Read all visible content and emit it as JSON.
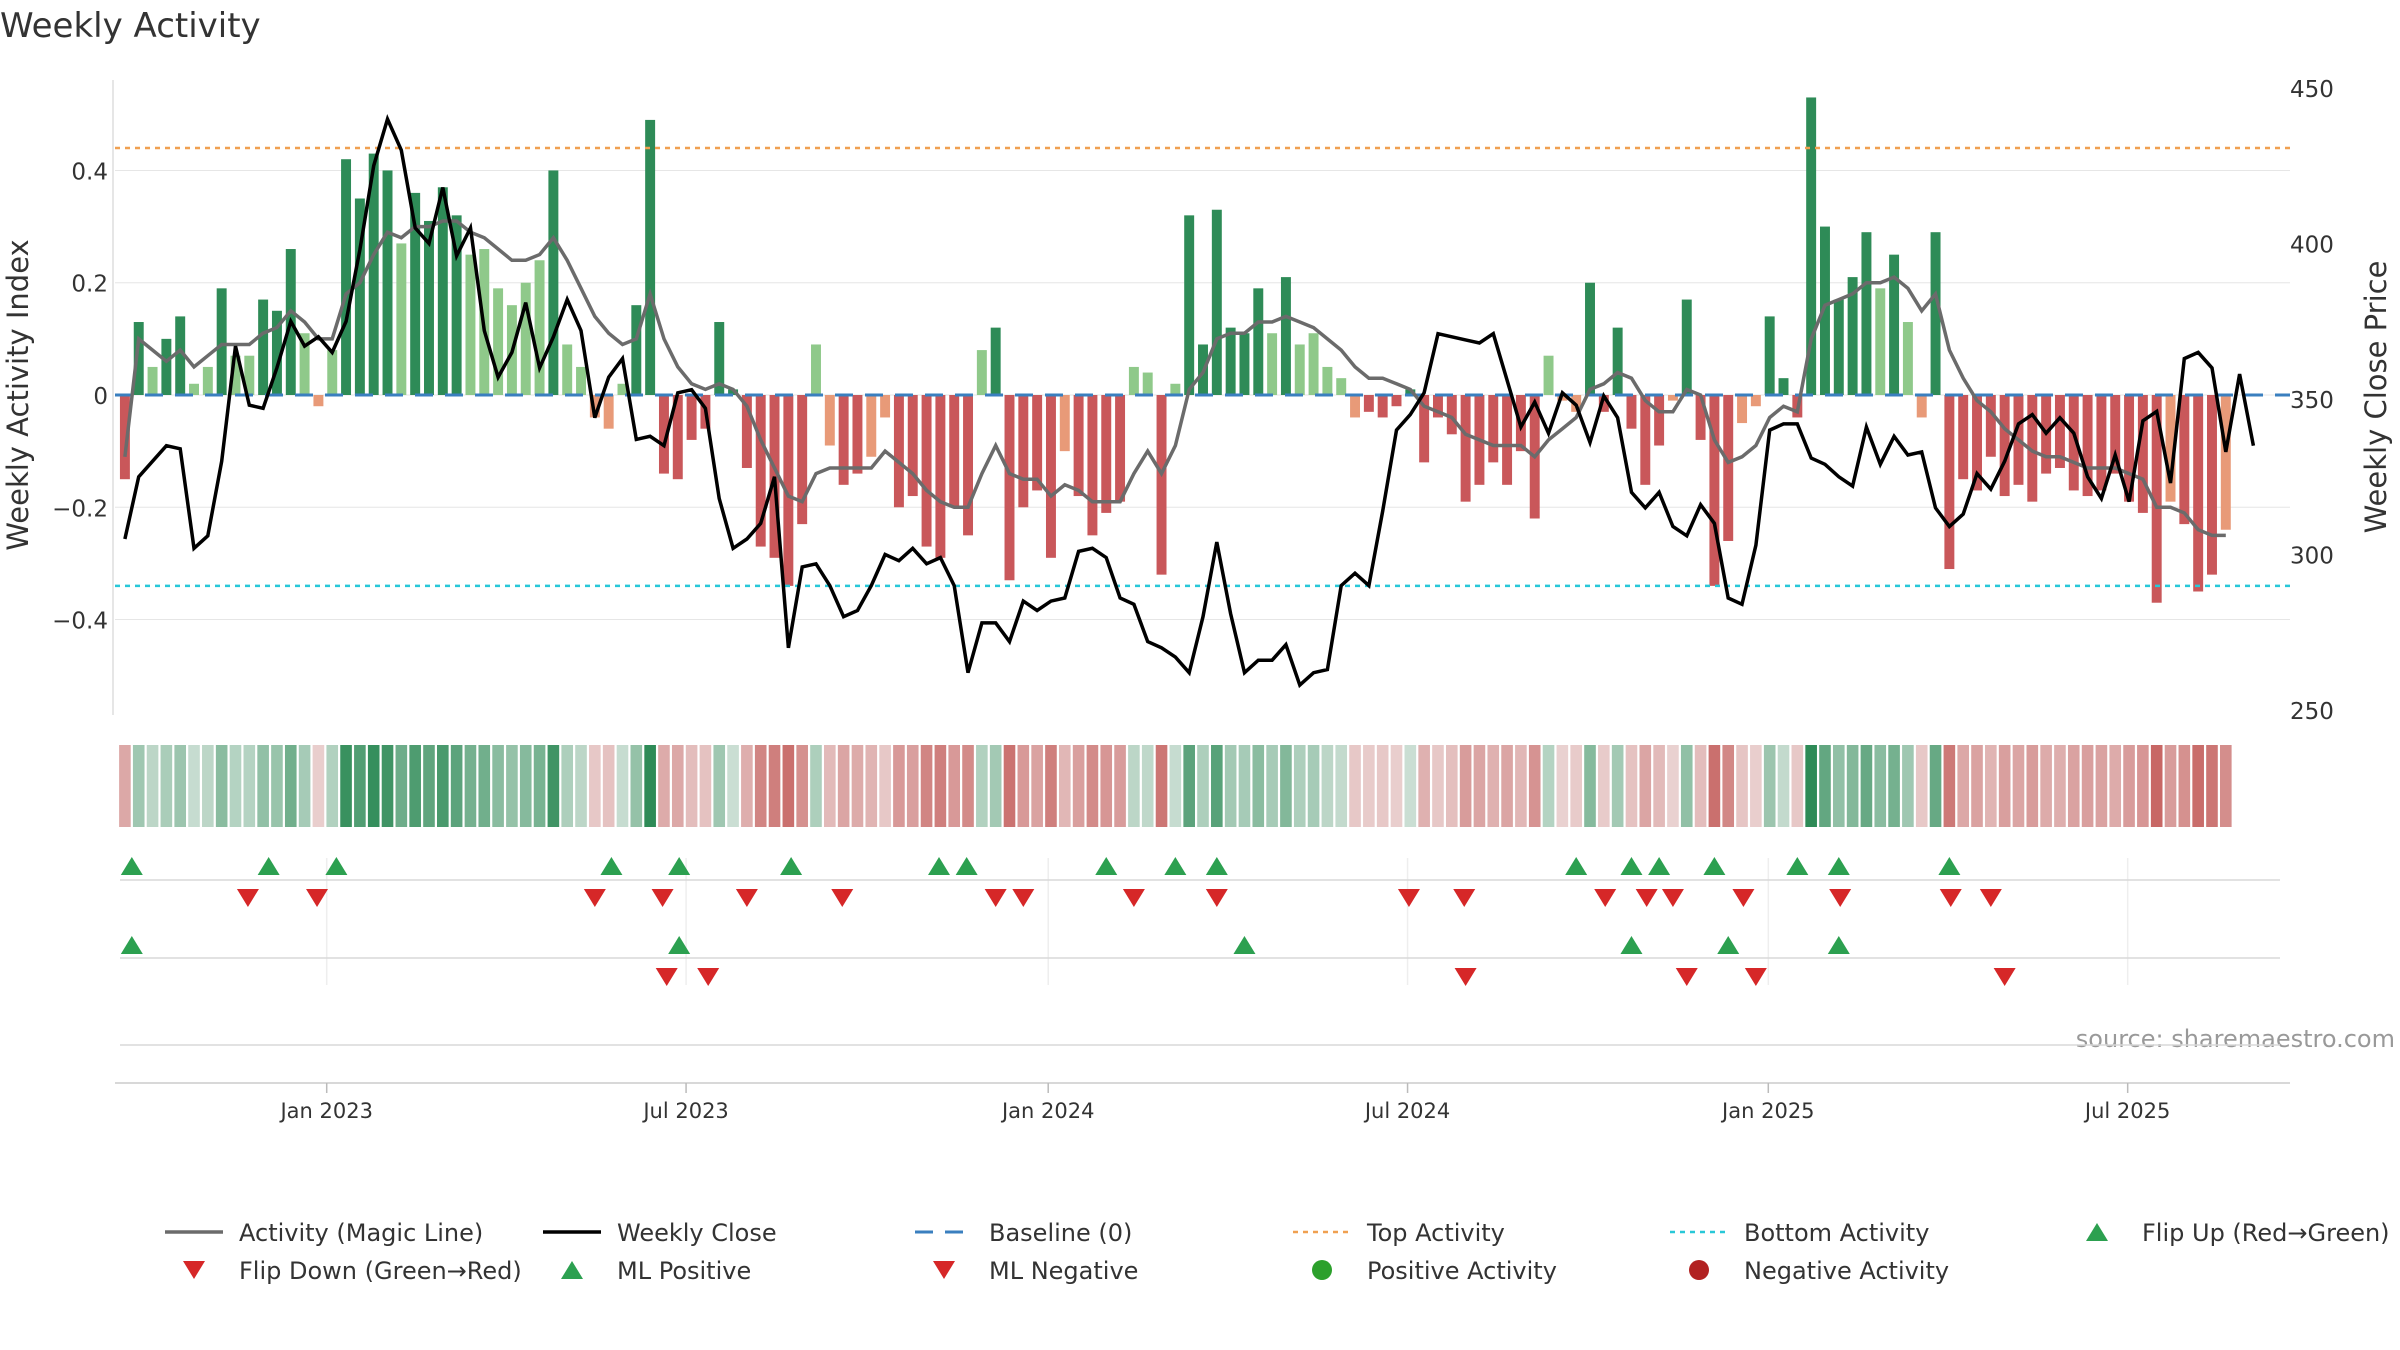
{
  "chart_data": {
    "type": "bar",
    "title": "Weekly Activity",
    "ylabel": "Weekly Activity Index",
    "y2label": "Weekly Close Price",
    "ylim": [
      -0.57,
      0.57
    ],
    "y2lim": [
      250,
      450
    ],
    "yticks": [
      {
        "value": 0.4,
        "label": "0.4"
      },
      {
        "value": 0.2,
        "label": "0.2"
      },
      {
        "value": 0,
        "label": "0"
      },
      {
        "value": -0.2,
        "label": "−0.2"
      },
      {
        "value": -0.4,
        "label": "−0.4"
      }
    ],
    "y2ticks": [
      450,
      400,
      350,
      300,
      250
    ],
    "xlim": [
      0,
      157
    ],
    "xticks": [
      {
        "label": "Jan 2023",
        "week": 15.1
      },
      {
        "label": "Jul 2023",
        "week": 41.1
      },
      {
        "label": "Jan 2024",
        "week": 67.3
      },
      {
        "label": "Jul 2024",
        "week": 93.3
      },
      {
        "label": "Jan 2025",
        "week": 119.4
      },
      {
        "label": "Jul 2025",
        "week": 145.4
      }
    ],
    "top_activity": 0.44,
    "bottom_activity": -0.34,
    "activity": [
      -0.15,
      0.13,
      0.05,
      0.1,
      0.14,
      0.02,
      0.05,
      0.19,
      0.07,
      0.07,
      0.17,
      0.15,
      0.26,
      0.11,
      -0.02,
      0.08,
      0.42,
      0.35,
      0.43,
      0.4,
      0.27,
      0.36,
      0.31,
      0.37,
      0.32,
      0.25,
      0.26,
      0.19,
      0.16,
      0.2,
      0.24,
      0.4,
      0.09,
      0.05,
      -0.04,
      -0.06,
      0.02,
      0.16,
      0.49,
      -0.14,
      -0.15,
      -0.08,
      -0.06,
      0.13,
      0.01,
      -0.13,
      -0.27,
      -0.29,
      -0.34,
      -0.23,
      0.09,
      -0.09,
      -0.16,
      -0.14,
      -0.11,
      -0.04,
      -0.2,
      -0.18,
      -0.27,
      -0.29,
      -0.2,
      -0.25,
      0.08,
      0.12,
      -0.33,
      -0.2,
      -0.17,
      -0.29,
      -0.1,
      -0.18,
      -0.25,
      -0.21,
      -0.19,
      0.05,
      0.04,
      -0.32,
      0.02,
      0.32,
      0.09,
      0.33,
      0.12,
      0.11,
      0.19,
      0.11,
      0.21,
      0.09,
      0.11,
      0.05,
      0.03,
      -0.04,
      -0.03,
      -0.04,
      -0.02,
      0.01,
      -0.12,
      -0.04,
      -0.07,
      -0.19,
      -0.16,
      -0.12,
      -0.16,
      -0.1,
      -0.22,
      0.07,
      -0.01,
      -0.03,
      0.2,
      -0.03,
      0.12,
      -0.06,
      -0.16,
      -0.09,
      -0.01,
      0.17,
      -0.08,
      -0.34,
      -0.26,
      -0.05,
      -0.02,
      0.14,
      0.03,
      -0.04,
      0.53,
      0.3,
      0.17,
      0.21,
      0.29,
      0.19,
      0.25,
      0.13,
      -0.04,
      0.29,
      -0.31,
      -0.15,
      -0.17,
      -0.11,
      -0.18,
      -0.16,
      -0.19,
      -0.14,
      -0.13,
      -0.17,
      -0.18,
      -0.17,
      -0.14,
      -0.19,
      -0.21,
      -0.37,
      -0.19,
      -0.23,
      -0.35,
      -0.32,
      -0.24
    ],
    "magic_line": [
      -0.11,
      0.1,
      0.08,
      0.06,
      0.08,
      0.05,
      0.07,
      0.09,
      0.09,
      0.09,
      0.11,
      0.12,
      0.15,
      0.13,
      0.1,
      0.1,
      0.18,
      0.2,
      0.25,
      0.29,
      0.28,
      0.3,
      0.3,
      0.31,
      0.31,
      0.29,
      0.28,
      0.26,
      0.24,
      0.24,
      0.25,
      0.28,
      0.24,
      0.19,
      0.14,
      0.11,
      0.09,
      0.1,
      0.18,
      0.1,
      0.05,
      0.02,
      0.01,
      0.02,
      0.01,
      -0.02,
      -0.08,
      -0.13,
      -0.18,
      -0.19,
      -0.14,
      -0.13,
      -0.13,
      -0.13,
      -0.13,
      -0.1,
      -0.12,
      -0.14,
      -0.17,
      -0.19,
      -0.2,
      -0.2,
      -0.14,
      -0.09,
      -0.14,
      -0.15,
      -0.15,
      -0.18,
      -0.16,
      -0.17,
      -0.19,
      -0.19,
      -0.19,
      -0.14,
      -0.1,
      -0.14,
      -0.09,
      0.01,
      0.04,
      0.1,
      0.11,
      0.11,
      0.13,
      0.13,
      0.14,
      0.13,
      0.12,
      0.1,
      0.08,
      0.05,
      0.03,
      0.03,
      0.02,
      0.01,
      -0.02,
      -0.03,
      -0.04,
      -0.07,
      -0.08,
      -0.09,
      -0.09,
      -0.09,
      -0.11,
      -0.08,
      -0.06,
      -0.04,
      0.01,
      0.02,
      0.04,
      0.03,
      -0.01,
      -0.03,
      -0.03,
      0.01,
      0,
      -0.08,
      -0.12,
      -0.11,
      -0.09,
      -0.04,
      -0.02,
      -0.03,
      0.1,
      0.16,
      0.17,
      0.18,
      0.2,
      0.2,
      0.21,
      0.19,
      0.15,
      0.18,
      0.08,
      0.03,
      -0.01,
      -0.03,
      -0.06,
      -0.08,
      -0.1,
      -0.11,
      -0.11,
      -0.12,
      -0.13,
      -0.13,
      -0.13,
      -0.14,
      -0.15,
      -0.2,
      -0.2,
      -0.21,
      -0.24,
      -0.25,
      -0.25
    ],
    "weekly_close": [
      305,
      325,
      330,
      335,
      334,
      302,
      306,
      330,
      367,
      348,
      347,
      360,
      375,
      367,
      370,
      365,
      375,
      398,
      425,
      440,
      430,
      405,
      400,
      418,
      396,
      405,
      372,
      357,
      365,
      381,
      360,
      370,
      382,
      372,
      344,
      357,
      363,
      337,
      338,
      335,
      352,
      353,
      347,
      318,
      302,
      305,
      310,
      325,
      270,
      296,
      297,
      290,
      280,
      282,
      290,
      300,
      298,
      302,
      297,
      299,
      290,
      262,
      278,
      278,
      272,
      285,
      282,
      285,
      286,
      301,
      302,
      299,
      286,
      284,
      272,
      270,
      267,
      262,
      280,
      304,
      281,
      262,
      266,
      266,
      271,
      258,
      262,
      263,
      290,
      294,
      290,
      314,
      340,
      345,
      352,
      371,
      370,
      369,
      368,
      371,
      356,
      341,
      349,
      339,
      352,
      348,
      336,
      351,
      344,
      320,
      315,
      320,
      309,
      306,
      316,
      310,
      286,
      284,
      303,
      340,
      342,
      342,
      331,
      329,
      325,
      322,
      341,
      329,
      338,
      332,
      333,
      315,
      309,
      313,
      326,
      321,
      330,
      342,
      345,
      339,
      344,
      339,
      325,
      318,
      332,
      317,
      343,
      346,
      323,
      363,
      365,
      360,
      333,
      358,
      335
    ],
    "weekly_close_week_offset": 0,
    "flip_up_weeks": [
      0.5,
      10.4,
      15.3,
      35.2,
      40.1,
      48.2,
      58.9,
      60.9,
      71,
      76,
      79
    ],
    "flip_down_weeks": [
      8.9,
      13.9,
      34,
      38.9,
      45,
      51.9,
      63,
      65,
      73,
      79,
      92.9,
      96.9
    ],
    "flip_up_weeks_b": [
      105,
      109,
      111,
      115,
      121,
      124,
      132
    ],
    "flip_down_weeks_b": [
      107.1,
      110.1,
      112,
      117.1,
      124.1,
      132.1,
      135
    ],
    "ml_positive_weeks": [
      0.5,
      40.1,
      81,
      109,
      116,
      124
    ],
    "ml_negative_weeks": [
      39.2,
      42.2,
      97,
      113,
      118,
      136
    ],
    "source": "source: sharemaestro.com",
    "legend": [
      "Activity (Magic Line)",
      "Weekly Close",
      "Baseline (0)",
      "Top Activity",
      "Bottom Activity",
      "Flip Up (Red→Green)",
      "Flip Down (Green→Red)",
      "ML Positive",
      "ML Negative",
      "Positive Activity",
      "Negative Activity"
    ],
    "colors": {
      "green_strong": "#2e8b57",
      "green_light": "#8fc98a",
      "red_strong": "#c9575a",
      "red_light": "#e89a78",
      "magic_line": "#6b6b6b",
      "close_line": "#000000",
      "baseline": "#3a7fbf",
      "top": "#f0a050",
      "bottom": "#28c8d8",
      "tri_up": "#2ca050",
      "tri_down": "#d62728",
      "pos_dot": "#2ca02c",
      "neg_dot": "#b22222",
      "text": "#333333",
      "grid": "#e6e6e6"
    }
  }
}
